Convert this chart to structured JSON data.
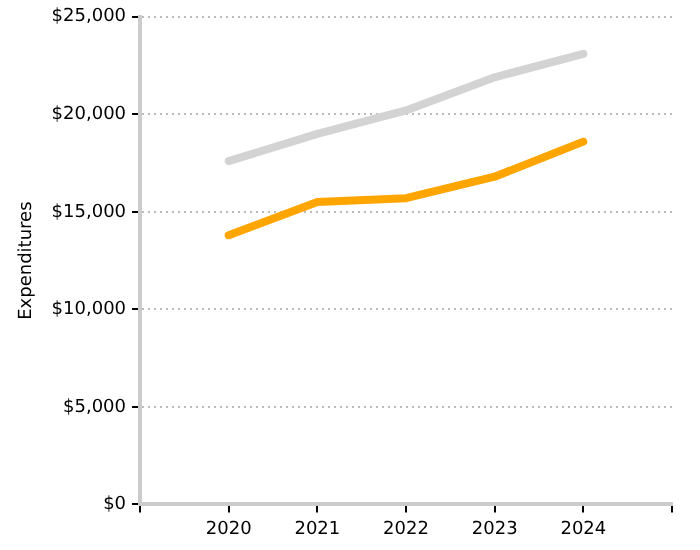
{
  "chart_data": {
    "type": "line",
    "ylabel": "Expenditures",
    "x": [
      2020,
      2021,
      2022,
      2023,
      2024
    ],
    "series": [
      {
        "color": "#d3d3d3",
        "values": [
          17600,
          19000,
          20200,
          21900,
          23100
        ]
      },
      {
        "color": "#ffa500",
        "values": [
          13800,
          15500,
          15700,
          16800,
          18600
        ]
      }
    ],
    "xlim": [
      2019,
      2025
    ],
    "xticks": [
      {
        "value": 2019,
        "label": null
      },
      2020,
      2021,
      2022,
      2023,
      2024,
      {
        "value": 2025,
        "label": null
      }
    ],
    "ylim": [
      0,
      25000
    ],
    "yticks": [
      {
        "value": 0,
        "label": "$0"
      },
      {
        "value": 5000,
        "label": "$5,000"
      },
      {
        "value": 10000,
        "label": "$10,000"
      },
      {
        "value": 15000,
        "label": "$15,000"
      },
      {
        "value": 20000,
        "label": "$20,000"
      },
      {
        "value": 25000,
        "label": "$25,000"
      }
    ],
    "grid": "y",
    "legend": false,
    "marker": "none",
    "line_style": "solid"
  }
}
